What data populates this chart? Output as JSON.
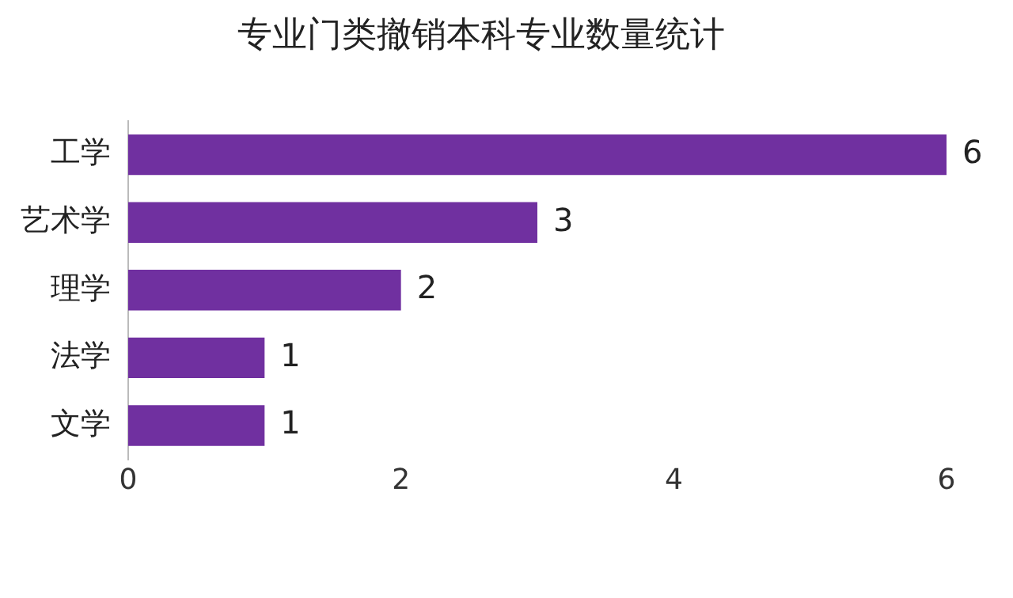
{
  "chart_data": {
    "type": "bar",
    "orientation": "horizontal",
    "title": "专业门类撤销本科专业数量统计",
    "categories": [
      "工学",
      "艺术学",
      "理学",
      "法学",
      "文学"
    ],
    "values": [
      6,
      3,
      2,
      1,
      1
    ],
    "color": "#7030a0",
    "xlim": [
      0,
      6
    ],
    "xticks": [
      0,
      2,
      4,
      6
    ],
    "grid": false,
    "legend": false,
    "data_labels": true
  }
}
